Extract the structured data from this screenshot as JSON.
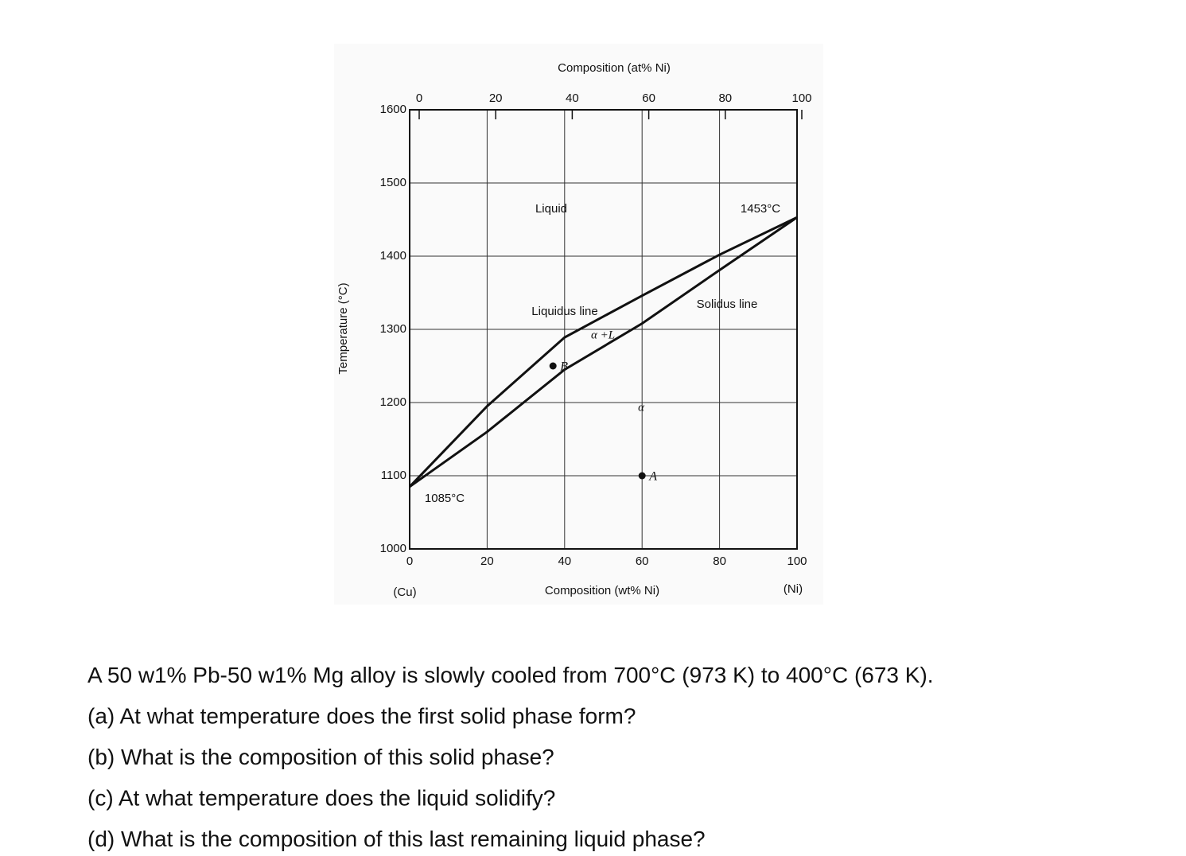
{
  "chart_data": {
    "type": "line",
    "title": "Composition (at% Ni)",
    "x_label": "Composition (wt% Ni)",
    "y_label": "Temperature (°C)",
    "xlim": [
      0,
      100
    ],
    "xticks": [
      0,
      20,
      40,
      60,
      80,
      100
    ],
    "x2lim": [
      0,
      100
    ],
    "x2ticks": [
      0,
      20,
      40,
      60,
      80,
      100
    ],
    "ylim": [
      1000,
      1600
    ],
    "yticks": [
      1000,
      1100,
      1200,
      1300,
      1400,
      1500,
      1600
    ],
    "grid": true,
    "x": [
      0,
      20,
      40,
      60,
      80,
      100
    ],
    "series": [
      {
        "name": "Liquidus line",
        "color": "#111111",
        "values": [
          1085,
          1195,
          1289,
          1346,
          1402,
          1453
        ]
      },
      {
        "name": "Solidus line",
        "color": "#111111",
        "values": [
          1085,
          1160,
          1245,
          1308,
          1381,
          1453
        ]
      }
    ],
    "points": [
      {
        "name": "B",
        "x": 37,
        "y": 1250
      },
      {
        "name": "A",
        "x": 60,
        "y": 1100
      }
    ],
    "annotations": [
      "Liquid",
      "1453°C",
      "α +L",
      "α",
      "1085°C",
      "(Cu)",
      "(Ni)"
    ]
  },
  "question": [
    "A 50 w1% Pb-50 w1% Mg alloy is slowly cooled from 700°C (973 K) to 400°C (673 K).",
    "(a) At what temperature does the first solid phase form?",
    "(b) What is the composition of this solid phase?",
    "(c) At what temperature does the liquid solidify?",
    "(d) What is the composition of this last remaining liquid phase?"
  ]
}
